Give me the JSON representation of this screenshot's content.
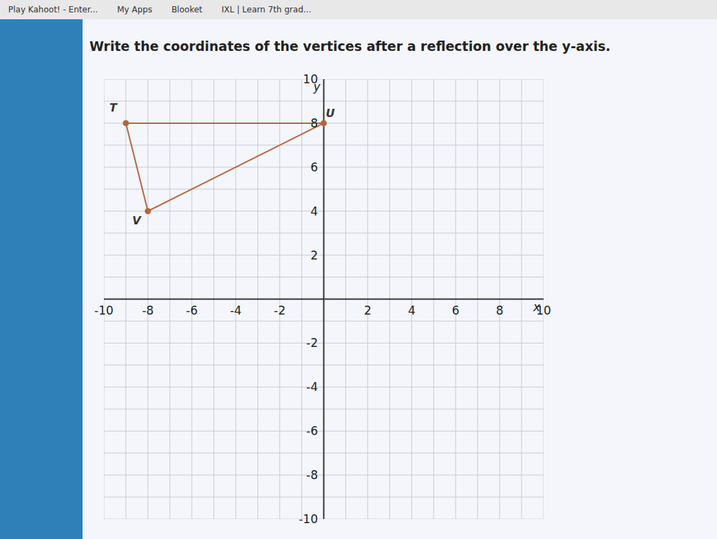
{
  "chart_data": {
    "type": "scatter",
    "title": "Write the coordinates of the vertices after a reflection over the y-axis.",
    "annotations": [
      "Play Kahoot! - Enter...",
      "My Apps",
      "Blooket",
      "IXL | Learn 7th grad..."
    ],
    "x_label": "x",
    "y_label": "y",
    "x": [
      -9,
      0,
      -8
    ],
    "values": [
      8,
      8,
      4
    ],
    "point_labels": [
      "T",
      "U",
      "V"
    ],
    "color": "#b5653f",
    "marker": "circle",
    "line_style": "solid",
    "xlim": [
      -10,
      10
    ],
    "ylim": [
      -10,
      10
    ],
    "xticks": [
      -10,
      -8,
      -6,
      -4,
      -2,
      2,
      4,
      6,
      8,
      10
    ],
    "yticks": [
      -10,
      -8,
      -6,
      -4,
      -2,
      2,
      4,
      6,
      8,
      10
    ],
    "grid": true
  }
}
